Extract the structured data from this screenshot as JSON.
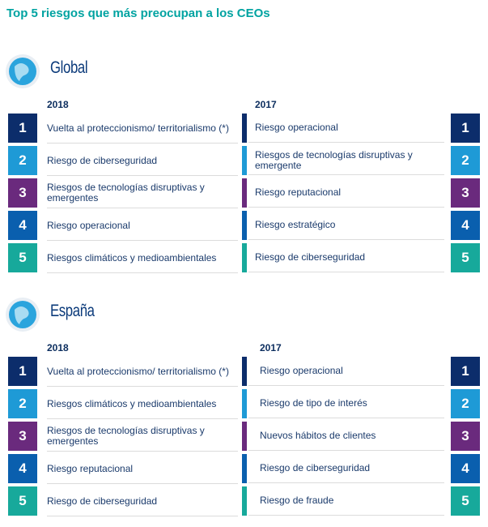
{
  "header": {
    "title": "Top 5 riesgos que más preocupan a los CEOs"
  },
  "sections": [
    {
      "name": "Global",
      "year_a": "2018",
      "year_b": "2017",
      "rows": [
        {
          "rank_a": 1,
          "risk_a": "Vuelta al proteccionismo/ territorialismo (*)",
          "risk_b": "Riesgo operacional",
          "rank_b": 1
        },
        {
          "rank_a": 2,
          "risk_a": "Riesgo de ciberseguridad",
          "risk_b": "Riesgos de tecnologías disruptivas y emergente",
          "rank_b": 2
        },
        {
          "rank_a": 3,
          "risk_a": "Riesgos de tecnologías disruptivas y emergentes",
          "risk_b": "Riesgo reputacional",
          "rank_b": 3
        },
        {
          "rank_a": 4,
          "risk_a": "Riesgo operacional",
          "risk_b": "Riesgo estratégico",
          "rank_b": 4
        },
        {
          "rank_a": 5,
          "risk_a": "Riesgos climáticos y medioambientales",
          "risk_b": "Riesgo de ciberseguridad",
          "rank_b": 5
        }
      ]
    },
    {
      "name": "España",
      "year_a": "2018",
      "year_b": "2017",
      "rows": [
        {
          "rank_a": 1,
          "risk_a": "Vuelta al proteccionismo/ territorialismo (*)",
          "risk_b": "Riesgo operacional",
          "rank_b": 1
        },
        {
          "rank_a": 2,
          "risk_a": "Riesgos climáticos y medioambientales",
          "risk_b": "Riesgo de tipo de interés",
          "rank_b": 2
        },
        {
          "rank_a": 3,
          "risk_a": "Riesgos de tecnologías disruptivas y emergentes",
          "risk_b": "Nuevos hábitos de clientes",
          "rank_b": 3
        },
        {
          "rank_a": 4,
          "risk_a": "Riesgo reputacional",
          "risk_b": "Riesgo de ciberseguridad",
          "rank_b": 4
        },
        {
          "rank_a": 5,
          "risk_a": "Riesgo de ciberseguridad",
          "risk_b": "Riesgo de fraude",
          "rank_b": 5
        }
      ]
    }
  ]
}
